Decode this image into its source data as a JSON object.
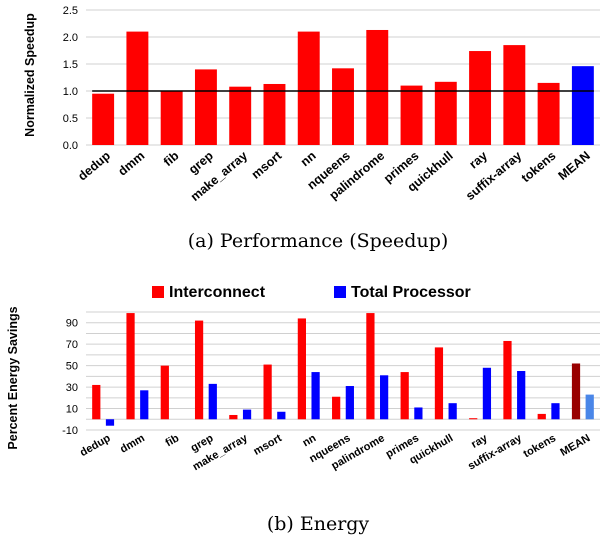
{
  "chart_data": [
    {
      "type": "bar",
      "caption": "(a) Performance (Speedup)",
      "ylabel": "Normalized Speedup",
      "ylim": [
        0,
        2.5
      ],
      "yticks": [
        "0.0",
        "0.5",
        "1.0",
        "1.5",
        "2.0",
        "2.5"
      ],
      "grid": true,
      "reference_line": 1.0,
      "categories": [
        "dedup",
        "dmm",
        "fib",
        "grep",
        "make_array",
        "msort",
        "nn",
        "nqueens",
        "palindrome",
        "primes",
        "quickhull",
        "ray",
        "suffix-array",
        "tokens",
        "MEAN"
      ],
      "values": [
        0.95,
        2.1,
        1.0,
        1.4,
        1.08,
        1.13,
        2.1,
        1.42,
        2.13,
        1.1,
        1.17,
        1.74,
        1.85,
        1.15,
        1.46
      ],
      "colors": [
        "#ff0000",
        "#ff0000",
        "#ff0000",
        "#ff0000",
        "#ff0000",
        "#ff0000",
        "#ff0000",
        "#ff0000",
        "#ff0000",
        "#ff0000",
        "#ff0000",
        "#ff0000",
        "#ff0000",
        "#ff0000",
        "#0000ff"
      ]
    },
    {
      "type": "bar",
      "caption": "(b) Energy",
      "ylabel": "Percent Energy Savings",
      "ylim": [
        -10,
        100
      ],
      "yticks": [
        "-10",
        "10",
        "30",
        "50",
        "70",
        "90"
      ],
      "grid": true,
      "legend_position": "top",
      "categories": [
        "dedup",
        "dmm",
        "fib",
        "grep",
        "make_array",
        "msort",
        "nn",
        "nqueens",
        "palindrome",
        "primes",
        "quickhull",
        "ray",
        "suffix-array",
        "tokens",
        "MEAN"
      ],
      "series": [
        {
          "name": "Interconnect",
          "color": "#ff0000",
          "mean_color": "#990000",
          "values": [
            32,
            99,
            50,
            92,
            4,
            51,
            94,
            21,
            99,
            44,
            67,
            1,
            73,
            5,
            52
          ]
        },
        {
          "name": "Total Processor",
          "color": "#0000ff",
          "mean_color": "#4a86e8",
          "values": [
            -6,
            27,
            0,
            33,
            9,
            7,
            44,
            31,
            41,
            11,
            15,
            48,
            45,
            15,
            23
          ]
        }
      ]
    }
  ]
}
